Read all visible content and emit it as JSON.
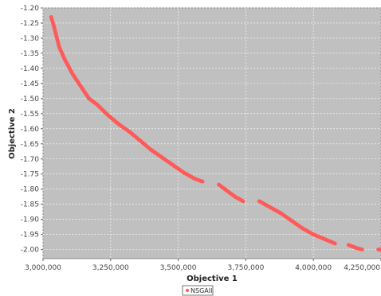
{
  "chart_data": {
    "type": "scatter",
    "xlabel": "Objective 1",
    "ylabel": "Objective 2",
    "xlim": [
      3000000,
      4250000
    ],
    "ylim": [
      -2.03,
      -1.2
    ],
    "x_ticks": [
      3000000,
      3250000,
      3500000,
      3750000,
      4000000,
      4250000
    ],
    "x_tick_labels": [
      "3,000,000",
      "3,250,000",
      "3,500,000",
      "3,750,000",
      "4,000,000",
      "4,250,000"
    ],
    "y_ticks": [
      -1.2,
      -1.25,
      -1.3,
      -1.35,
      -1.4,
      -1.45,
      -1.5,
      -1.55,
      -1.6,
      -1.65,
      -1.7,
      -1.75,
      -1.8,
      -1.85,
      -1.9,
      -1.95,
      -2.0
    ],
    "y_tick_labels": [
      "-1.20",
      "-1.25",
      "-1.30",
      "-1.35",
      "-1.40",
      "-1.45",
      "-1.50",
      "-1.55",
      "-1.60",
      "-1.65",
      "-1.70",
      "-1.75",
      "-1.80",
      "-1.85",
      "-1.90",
      "-1.95",
      "-2.00"
    ],
    "grid": true,
    "plot_background": "#c0c0c0",
    "legend_placement": "bottom-center",
    "series": [
      {
        "name": "NSGAII",
        "color": "#ff5a5a",
        "segments": [
          [
            [
              3030000,
              -1.23
            ],
            [
              3040000,
              -1.26
            ],
            [
              3060000,
              -1.33
            ],
            [
              3080000,
              -1.37
            ],
            [
              3110000,
              -1.42
            ],
            [
              3140000,
              -1.46
            ],
            [
              3170000,
              -1.5
            ],
            [
              3200000,
              -1.52
            ],
            [
              3240000,
              -1.555
            ],
            [
              3280000,
              -1.585
            ],
            [
              3320000,
              -1.61
            ],
            [
              3360000,
              -1.64
            ],
            [
              3400000,
              -1.67
            ],
            [
              3440000,
              -1.695
            ],
            [
              3480000,
              -1.72
            ],
            [
              3520000,
              -1.745
            ],
            [
              3560000,
              -1.765
            ],
            [
              3590000,
              -1.775
            ]
          ],
          [
            [
              3650000,
              -1.785
            ],
            [
              3680000,
              -1.805
            ],
            [
              3710000,
              -1.825
            ],
            [
              3740000,
              -1.84
            ]
          ],
          [
            [
              3800000,
              -1.84
            ],
            [
              3840000,
              -1.86
            ],
            [
              3880000,
              -1.88
            ],
            [
              3920000,
              -1.905
            ],
            [
              3960000,
              -1.93
            ],
            [
              4000000,
              -1.95
            ],
            [
              4040000,
              -1.965
            ],
            [
              4080000,
              -1.98
            ]
          ],
          [
            [
              4130000,
              -1.985
            ],
            [
              4160000,
              -1.995
            ],
            [
              4180000,
              -2.0
            ]
          ],
          [
            [
              4240000,
              -2.0
            ],
            [
              4250000,
              -2.0
            ]
          ]
        ]
      }
    ]
  }
}
